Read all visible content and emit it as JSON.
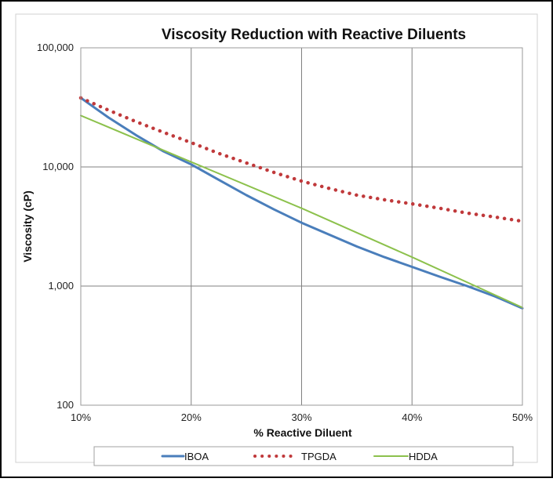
{
  "chart_data": {
    "type": "line",
    "title": "Viscosity Reduction with Reactive Diluents",
    "xlabel": "% Reactive Diluent",
    "ylabel": "Viscosity  (cP)",
    "x_scale": "linear",
    "y_scale": "log",
    "xlim": [
      10,
      50
    ],
    "ylim": [
      100,
      100000
    ],
    "x_ticks": [
      10,
      20,
      30,
      40,
      50
    ],
    "x_tick_labels": [
      "10%",
      "20%",
      "30%",
      "40%",
      "50%"
    ],
    "y_ticks": [
      100,
      1000,
      10000,
      100000
    ],
    "y_tick_labels": [
      "100",
      "1,000",
      "10,000",
      "100,000"
    ],
    "grid": true,
    "legend_position": "bottom",
    "series": [
      {
        "name": "IBOA",
        "color": "#4a7ebb",
        "line_style": "solid",
        "x": [
          10,
          12.5,
          15,
          17.5,
          20,
          22.5,
          25,
          27.5,
          30,
          32.5,
          35,
          37.5,
          40,
          42.5,
          45,
          47.5,
          50
        ],
        "y": [
          38000,
          26000,
          18500,
          13500,
          10500,
          7800,
          5800,
          4400,
          3400,
          2700,
          2150,
          1750,
          1450,
          1200,
          1000,
          820,
          650
        ]
      },
      {
        "name": "TPGDA",
        "color": "#c0393b",
        "line_style": "dotted",
        "x": [
          10,
          12.5,
          15,
          17.5,
          20,
          22.5,
          25,
          27.5,
          30,
          32.5,
          35,
          37.5,
          40,
          42.5,
          45,
          47.5,
          50
        ],
        "y": [
          38000,
          30000,
          24000,
          19500,
          16000,
          13000,
          10800,
          9000,
          7600,
          6600,
          5800,
          5300,
          4900,
          4500,
          4100,
          3800,
          3500
        ]
      },
      {
        "name": "HDDA",
        "color": "#8cc14c",
        "line_style": "solid",
        "x": [
          10,
          20,
          30,
          40,
          50
        ],
        "y": [
          27000,
          11000,
          4500,
          1750,
          660
        ]
      }
    ]
  }
}
